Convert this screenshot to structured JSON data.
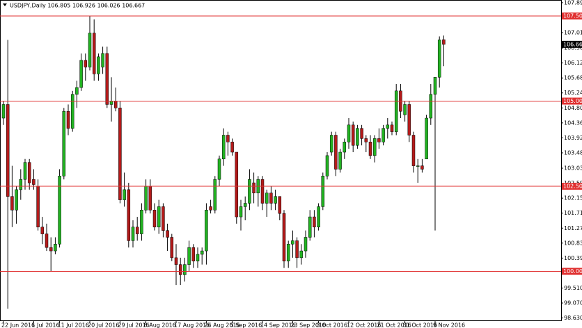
{
  "chart_data": {
    "type": "candlestick",
    "title": "USDJPY,Daily 106.805 106.926 106.026 106.667",
    "categories": [
      "22 Jun 2016",
      null,
      null,
      null,
      null,
      null,
      null,
      "1 Jul 2016",
      null,
      null,
      null,
      null,
      null,
      "11 Jul 2016",
      null,
      null,
      null,
      null,
      null,
      null,
      "20 Jul 2016",
      null,
      null,
      null,
      null,
      null,
      null,
      "29 Jul 2016",
      null,
      null,
      null,
      null,
      null,
      "8 Aug 2016",
      null,
      null,
      null,
      null,
      null,
      null,
      "17 Aug 2016",
      null,
      null,
      null,
      null,
      null,
      null,
      "26 Aug 2016",
      null,
      null,
      null,
      null,
      null,
      "5 Sep 2016",
      null,
      null,
      null,
      null,
      null,
      null,
      "14 Sep 2016",
      null,
      null,
      null,
      null,
      null,
      null,
      "23 Sep 2016",
      null,
      null,
      null,
      null,
      null,
      "3 Oct 2016",
      null,
      null,
      null,
      null,
      null,
      null,
      "12 Oct 2016",
      null,
      null,
      null,
      null,
      null,
      null,
      "21 Oct 2016",
      null,
      null,
      null,
      null,
      null,
      "31 Oct 2016",
      null,
      null,
      null,
      null,
      null,
      null,
      "9 Nov 2016",
      null,
      null
    ],
    "open": [
      104.5,
      104.9,
      102.2,
      101.8,
      102.4,
      102.7,
      103.2,
      102.7,
      102.5,
      101.3,
      101.1,
      100.7,
      100.6,
      100.8,
      102.8,
      104.7,
      104.2,
      105.2,
      105.4,
      106.2,
      106.0,
      107.0,
      105.8,
      106.0,
      106.4,
      104.9,
      105.0,
      104.8,
      102.1,
      102.4,
      100.9,
      101.3,
      101.1,
      101.8,
      102.5,
      101.8,
      101.3,
      101.9,
      101.2,
      101.0,
      100.4,
      100.2,
      99.9,
      100.2,
      100.7,
      100.3,
      100.5,
      100.6,
      101.9,
      101.8,
      102.7,
      103.3,
      104.0,
      103.8,
      103.5,
      101.6,
      101.9,
      102.0,
      102.6,
      102.3,
      102.7,
      102.0,
      102.3,
      102.0,
      102.2,
      101.7,
      100.3,
      100.8,
      100.9,
      100.4,
      100.6,
      101.0,
      101.6,
      101.3,
      101.9,
      102.8,
      103.5,
      104.0,
      103.0,
      103.5,
      103.8,
      104.3,
      103.7,
      104.2,
      103.9,
      103.8,
      103.4,
      103.9,
      103.8,
      104.2,
      104.3,
      104.1,
      105.3,
      104.6,
      104.9,
      104.0,
      103.1,
      103.1,
      103.3,
      104.5,
      105.2,
      105.7,
      106.805
    ],
    "high": [
      105.0,
      106.8,
      103.1,
      102.5,
      103.0,
      103.3,
      103.3,
      103.0,
      102.7,
      101.6,
      101.4,
      101.0,
      101.0,
      103.0,
      104.8,
      104.9,
      105.3,
      105.6,
      106.4,
      106.4,
      107.5,
      107.4,
      106.4,
      106.6,
      106.6,
      105.7,
      105.4,
      105.0,
      102.9,
      102.6,
      101.5,
      101.6,
      102.0,
      102.7,
      102.7,
      102.0,
      102.1,
      102.0,
      101.4,
      101.1,
      100.8,
      100.4,
      100.4,
      100.9,
      100.8,
      100.7,
      100.7,
      102.0,
      102.1,
      102.8,
      103.4,
      104.2,
      104.1,
      103.9,
      103.5,
      102.1,
      102.2,
      103.0,
      102.9,
      102.8,
      102.8,
      102.4,
      102.5,
      102.4,
      102.2,
      101.8,
      100.9,
      101.2,
      101.0,
      100.8,
      101.2,
      101.8,
      101.8,
      102.0,
      102.9,
      103.5,
      104.1,
      104.1,
      103.6,
      103.9,
      104.5,
      104.4,
      104.3,
      104.3,
      104.0,
      104.0,
      104.0,
      104.2,
      104.3,
      104.5,
      104.4,
      105.5,
      105.5,
      105.0,
      105.0,
      104.1,
      103.3,
      103.3,
      104.6,
      105.5,
      105.7,
      106.9,
      106.926
    ],
    "low": [
      104.3,
      98.9,
      101.3,
      101.4,
      102.1,
      102.4,
      102.4,
      102.4,
      101.2,
      100.8,
      100.6,
      100.0,
      100.5,
      100.7,
      102.7,
      104.0,
      104.1,
      104.8,
      105.3,
      105.6,
      105.9,
      105.6,
      105.6,
      105.8,
      104.8,
      104.4,
      104.7,
      102.0,
      101.9,
      100.7,
      100.7,
      100.9,
      100.9,
      101.7,
      101.7,
      101.2,
      101.1,
      101.0,
      100.6,
      100.3,
      99.6,
      99.6,
      99.7,
      100.0,
      100.1,
      100.1,
      100.2,
      100.2,
      101.7,
      101.7,
      102.5,
      103.1,
      103.4,
      103.4,
      101.4,
      101.2,
      101.5,
      101.8,
      102.0,
      101.9,
      101.8,
      101.6,
      101.8,
      101.8,
      101.5,
      100.1,
      100.1,
      100.4,
      100.1,
      100.2,
      100.4,
      100.9,
      101.0,
      101.2,
      101.8,
      102.7,
      103.4,
      102.8,
      102.9,
      103.3,
      103.6,
      103.5,
      103.6,
      103.7,
      103.5,
      103.3,
      103.2,
      103.6,
      103.7,
      103.9,
      104.0,
      104.0,
      104.5,
      104.4,
      103.8,
      102.9,
      102.6,
      102.9,
      103.3,
      104.3,
      101.2,
      105.4,
      106.026
    ],
    "close": [
      104.9,
      102.2,
      101.8,
      102.4,
      102.7,
      103.2,
      102.6,
      102.55,
      101.3,
      101.1,
      100.7,
      100.6,
      100.8,
      102.8,
      104.7,
      104.2,
      105.2,
      105.4,
      106.2,
      106.0,
      107.0,
      105.8,
      106.3,
      106.4,
      104.9,
      105.0,
      104.8,
      102.1,
      102.4,
      100.9,
      101.3,
      101.1,
      101.8,
      102.5,
      101.8,
      101.3,
      101.9,
      101.2,
      101.0,
      100.4,
      100.2,
      99.9,
      100.2,
      100.7,
      100.3,
      100.5,
      100.6,
      101.8,
      101.8,
      102.7,
      103.3,
      104.0,
      103.8,
      103.5,
      101.6,
      101.9,
      102.0,
      102.7,
      102.3,
      102.7,
      102.0,
      102.3,
      102.0,
      102.2,
      101.7,
      100.3,
      100.8,
      100.9,
      100.4,
      100.6,
      101.0,
      101.6,
      101.3,
      101.9,
      102.8,
      103.4,
      104.0,
      103.0,
      103.5,
      103.8,
      104.3,
      103.7,
      104.2,
      103.9,
      103.8,
      103.4,
      103.9,
      103.8,
      104.2,
      104.3,
      104.1,
      105.3,
      104.7,
      104.9,
      104.0,
      103.1,
      103.1,
      103.0,
      104.5,
      105.2,
      105.7,
      106.8,
      106.667
    ],
    "up_color": "#22b322",
    "down_color": "#b31a1a",
    "ylim": [
      98.54,
      107.97
    ],
    "yticks": [
      {
        "value": 107.89,
        "label": "107.890"
      },
      {
        "value": 107.01,
        "label": "107.010"
      },
      {
        "value": 106.56,
        "label": "106.560"
      },
      {
        "value": 106.12,
        "label": "106.120"
      },
      {
        "value": 105.68,
        "label": "105.680"
      },
      {
        "value": 105.24,
        "label": "105.240"
      },
      {
        "value": 104.8,
        "label": "104.800"
      },
      {
        "value": 104.36,
        "label": "104.360"
      },
      {
        "value": 103.92,
        "label": "103.920"
      },
      {
        "value": 103.48,
        "label": "103.480"
      },
      {
        "value": 103.03,
        "label": "103.030"
      },
      {
        "value": 102.59,
        "label": "102.590"
      },
      {
        "value": 102.15,
        "label": "102.150"
      },
      {
        "value": 101.71,
        "label": "101.710"
      },
      {
        "value": 101.27,
        "label": "101.270"
      },
      {
        "value": 100.83,
        "label": "100.830"
      },
      {
        "value": 100.39,
        "label": "100.390"
      },
      {
        "value": 99.95,
        "label": "99.950"
      },
      {
        "value": 99.51,
        "label": "99.510"
      },
      {
        "value": 99.07,
        "label": "99.070"
      },
      {
        "value": 98.63,
        "label": "98.630"
      }
    ],
    "hlines": [
      {
        "value": 107.5,
        "label": "107.500"
      },
      {
        "value": 105,
        "label": "105.000"
      },
      {
        "value": 102.5,
        "label": "102.500"
      },
      {
        "value": 100,
        "label": "100.000"
      }
    ],
    "hline_color": "#e03030",
    "current_price": 106.667
  }
}
